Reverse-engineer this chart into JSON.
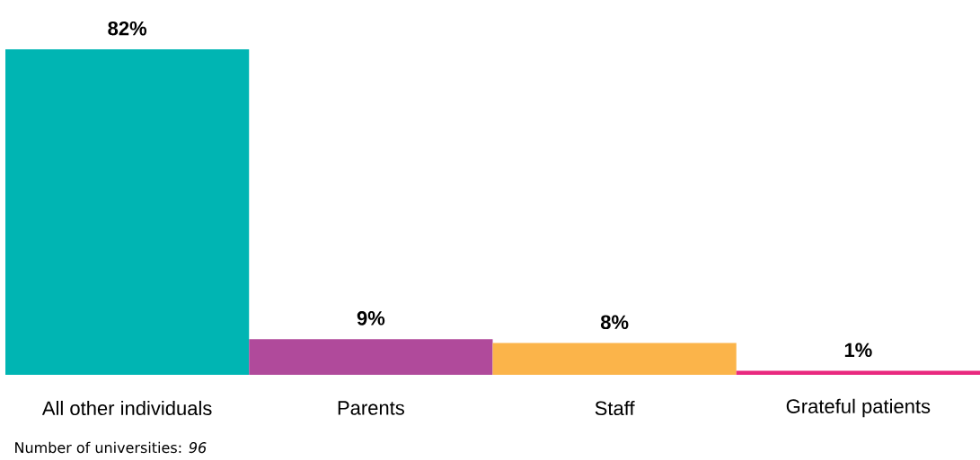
{
  "chart_data": {
    "type": "bar",
    "categories": [
      "All other individuals",
      "Parents",
      "Staff",
      "Grateful patients"
    ],
    "values": [
      82,
      9,
      8,
      1
    ],
    "colors": [
      "#00b5b3",
      "#b04a9b",
      "#fbb44a",
      "#e9297f"
    ],
    "value_labels": [
      "82%",
      "9%",
      "8%",
      "1%"
    ],
    "annotations": [
      "Number of universities: *96*"
    ]
  }
}
